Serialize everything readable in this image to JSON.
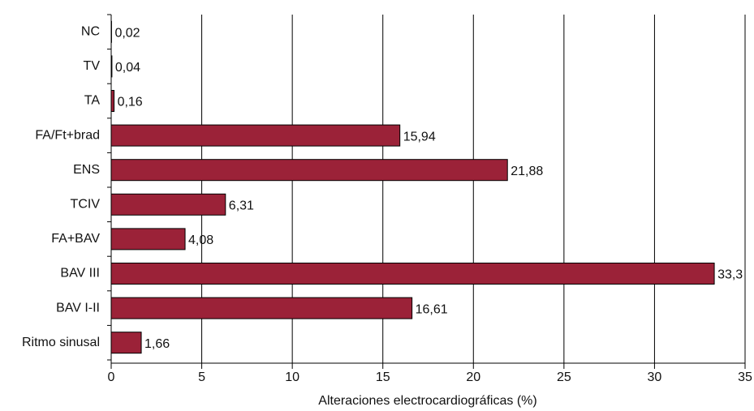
{
  "chart_data": {
    "type": "hbar",
    "xlabel": "Alteraciones electrocardiográficas (%)",
    "categories": [
      "NC",
      "TV",
      "TA",
      "FA/Ft+brad",
      "ENS",
      "TCIV",
      "FA+BAV",
      "BAV III",
      "BAV I-II",
      "Ritmo sinusal"
    ],
    "values": [
      0.02,
      0.04,
      0.16,
      15.94,
      21.88,
      6.31,
      4.08,
      33.3,
      16.61,
      1.66
    ],
    "value_labels": [
      "0,02",
      "0,04",
      "0,16",
      "15,94",
      "21,88",
      "6,31",
      "4,08",
      "33,3",
      "16,61",
      "1,66"
    ],
    "color": "#9b2238",
    "xlim": [
      0,
      35
    ],
    "xticks": [
      0,
      5,
      10,
      15,
      20,
      25,
      30,
      35
    ],
    "grid": true
  }
}
